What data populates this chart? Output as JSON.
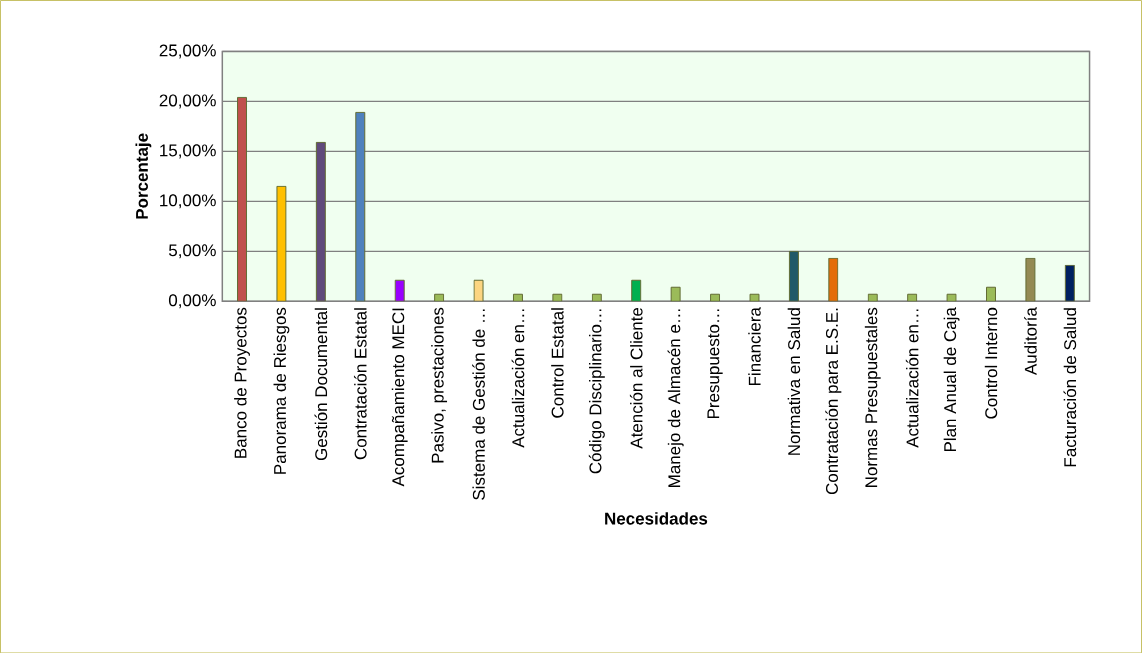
{
  "chart_data": {
    "type": "bar",
    "xlabel": "Necesidades",
    "ylabel": "Porcentaje",
    "categories": [
      "Banco de Proyectos",
      "Panorama de Riesgos",
      "Gestión Documental",
      "Contratación Estatal",
      "Acompañamiento MECI",
      "Pasivo, prestaciones",
      "Sistema de Gestión de …",
      "Actualización en…",
      "Control Estatal",
      "Código Disciplinario…",
      "Atención al Cliente",
      "Manejo de Almacén e…",
      "Presupuesto…",
      "Financiera",
      "Normativa en Salud",
      "Contratación para E.S.E.",
      "Normas Presupuestales",
      "Actualización en…",
      "Plan Anual de Caja",
      "Control Interno",
      "Auditoría",
      "Facturación de Salud"
    ],
    "values": [
      20.4,
      11.5,
      15.9,
      18.9,
      2.1,
      0.7,
      2.1,
      0.7,
      0.7,
      0.7,
      2.1,
      1.4,
      0.7,
      0.7,
      5.0,
      4.3,
      0.7,
      0.7,
      0.7,
      1.4,
      4.3,
      3.6
    ],
    "colors": [
      "#c0504d",
      "#ffc000",
      "#604a7b",
      "#4f81bd",
      "#9900ff",
      "#9bbb59",
      "#fcd581",
      "#9bbb59",
      "#9bbb59",
      "#9bbb59",
      "#00b050",
      "#9bbb59",
      "#9bbb59",
      "#9bbb59",
      "#215968",
      "#e46c0a",
      "#9bbb59",
      "#9bbb59",
      "#9bbb59",
      "#9bbb59",
      "#948a54",
      "#002060"
    ],
    "ylim": [
      0,
      25
    ],
    "yticks": [
      {
        "value": 0,
        "label": "0,00%"
      },
      {
        "value": 5,
        "label": "5,00%"
      },
      {
        "value": 10,
        "label": "10,00%"
      },
      {
        "value": 15,
        "label": "15,00%"
      },
      {
        "value": 20,
        "label": "20,00%"
      },
      {
        "value": 25,
        "label": "25,00%"
      }
    ],
    "grid": "y"
  }
}
